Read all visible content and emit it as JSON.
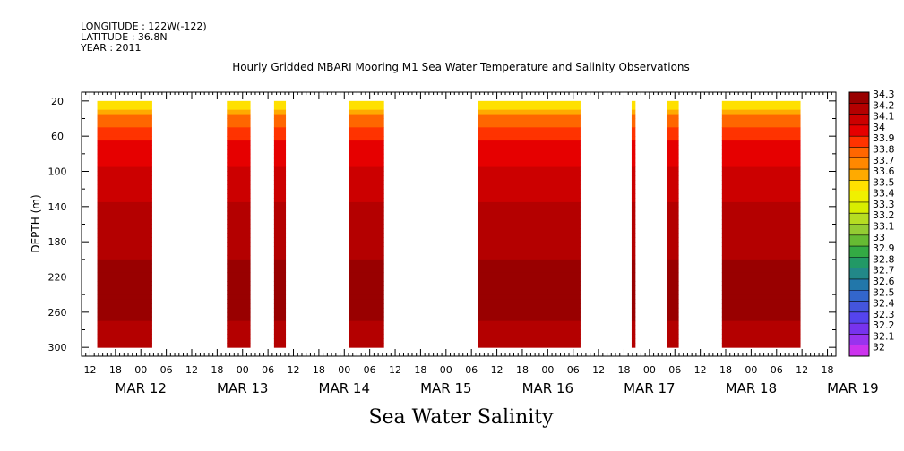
{
  "header": {
    "longitude": "LONGITUDE : 122W(-122)",
    "latitude": "LATITUDE : 36.8N",
    "year": "YEAR : 2011"
  },
  "chart_data": {
    "type": "heatmap",
    "title": "Hourly Gridded MBARI Mooring M1 Sea Water Temperature and Salinity Observations",
    "variable_title": "Sea Water Salinity",
    "ylabel": "DEPTH (m)",
    "xlabel": "",
    "x_hours_range": [
      0,
      192
    ],
    "x_range_hours_since_mar12_00": [
      -14,
      164
    ],
    "ylim": [
      310,
      10
    ],
    "y_ticks": [
      20,
      60,
      100,
      140,
      180,
      220,
      260,
      300
    ],
    "x_hour_tick_labels": [
      "12",
      "18",
      "00",
      "06",
      "12",
      "18",
      "00",
      "06",
      "12",
      "18",
      "00",
      "06",
      "12",
      "18",
      "00",
      "06",
      "12",
      "18",
      "00",
      "06",
      "12",
      "18",
      "00",
      "06",
      "12",
      "18",
      "00",
      "06",
      "12",
      "18",
      "00",
      "06"
    ],
    "x_day_labels": [
      "MAR 12",
      "MAR 13",
      "MAR 14",
      "MAR 15",
      "MAR 16",
      "MAR 17",
      "MAR 18",
      "MAR 19"
    ],
    "legend_levels": [
      34.3,
      34.2,
      34.1,
      34,
      33.9,
      33.8,
      33.7,
      33.6,
      33.5,
      33.4,
      33.3,
      33.2,
      33.1,
      33,
      32.9,
      32.8,
      32.7,
      32.6,
      32.5,
      32.4,
      32.3,
      32.2,
      32.1,
      32
    ],
    "legend_colors": [
      "#990000",
      "#b40000",
      "#cc0000",
      "#e60000",
      "#ff3300",
      "#ff6600",
      "#ff8800",
      "#ffaa00",
      "#ffe000",
      "#f0f000",
      "#d8ee00",
      "#b6dd22",
      "#94cc33",
      "#66bb33",
      "#33aa44",
      "#229966",
      "#228888",
      "#2277aa",
      "#3366cc",
      "#4455dd",
      "#5544ee",
      "#7733ee",
      "#9933ee",
      "#cc33ee"
    ],
    "data_blocks_hours": [
      {
        "start": 4,
        "end": 18
      },
      {
        "start": 37,
        "end": 43
      },
      {
        "start": 49,
        "end": 52
      },
      {
        "start": 68,
        "end": 77
      },
      {
        "start": 101,
        "end": 127
      },
      {
        "start": 140,
        "end": 141
      },
      {
        "start": 149,
        "end": 152
      },
      {
        "start": 163,
        "end": 183
      },
      {
        "start": 213,
        "end": 216
      }
    ],
    "profile": [
      {
        "depth": 20,
        "value": 33.4
      },
      {
        "depth": 30,
        "value": 33.6
      },
      {
        "depth": 40,
        "value": 33.8
      },
      {
        "depth": 55,
        "value": 33.9
      },
      {
        "depth": 80,
        "value": 34.0
      },
      {
        "depth": 110,
        "value": 34.1
      },
      {
        "depth": 160,
        "value": 34.2
      },
      {
        "depth": 240,
        "value": 34.3
      },
      {
        "depth": 300,
        "value": 34.2
      }
    ]
  }
}
